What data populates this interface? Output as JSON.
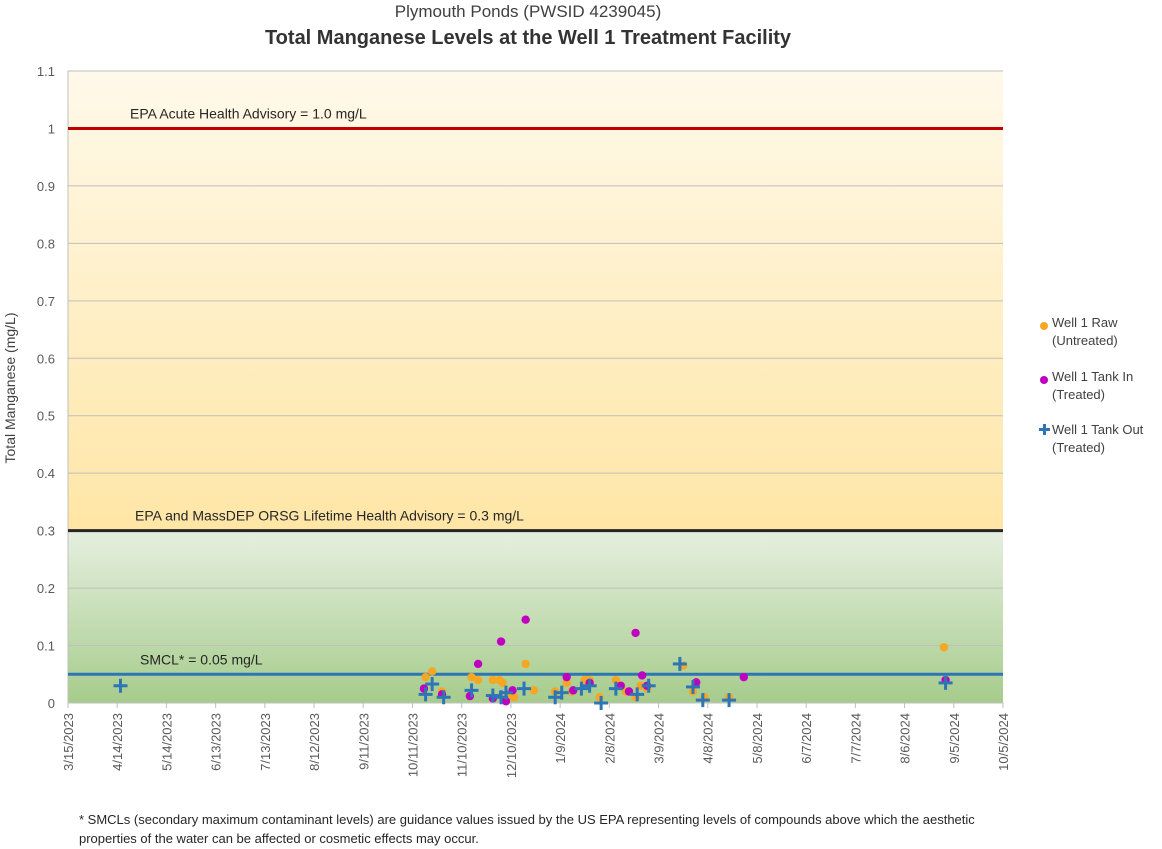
{
  "chart_data": {
    "type": "scatter",
    "subtitle": "Plymouth Ponds (PWSID 4239045)",
    "title": "Total Manganese Levels at the Well 1 Treatment Facility",
    "ylabel": "Total Manganese (mg/L)",
    "xlabel": "",
    "ylim": [
      0,
      1.1
    ],
    "y_ticks": [
      "0",
      "0.1",
      "0.2",
      "0.3",
      "0.4",
      "0.5",
      "0.6",
      "0.7",
      "0.8",
      "0.9",
      "1",
      "1.1"
    ],
    "x_ticks": [
      "3/15/2023",
      "4/14/2023",
      "5/14/2023",
      "6/13/2023",
      "7/13/2023",
      "8/12/2023",
      "9/11/2023",
      "10/11/2023",
      "11/10/2023",
      "12/10/2023",
      "1/9/2024",
      "2/8/2024",
      "3/9/2024",
      "4/8/2024",
      "5/8/2024",
      "6/7/2024",
      "7/7/2024",
      "8/6/2024",
      "9/5/2024",
      "10/5/2024"
    ],
    "xlim": [
      "2023-03-15",
      "2024-10-05"
    ],
    "grid": "horizontal",
    "legend_position": "right",
    "reference_lines": [
      {
        "label": "EPA Acute Health Advisory = 1.0 mg/L",
        "value": 1.0,
        "color": "#c00000"
      },
      {
        "label": "EPA and MassDEP ORSG Lifetime Health Advisory = 0.3 mg/L",
        "value": 0.3,
        "color": "#262626"
      },
      {
        "label": "SMCL* = 0.05 mg/L",
        "value": 0.05,
        "color": "#2e75b6"
      }
    ],
    "series": [
      {
        "name": "Well 1 Raw\n(Untreated)",
        "color": "#f5a623",
        "marker": "circle",
        "points": [
          [
            "2023-10-19",
            0.045
          ],
          [
            "2023-10-23",
            0.055
          ],
          [
            "2023-10-29",
            0.02
          ],
          [
            "2023-11-16",
            0.045
          ],
          [
            "2023-11-20",
            0.04
          ],
          [
            "2023-11-29",
            0.04
          ],
          [
            "2023-12-03",
            0.04
          ],
          [
            "2023-12-05",
            0.035
          ],
          [
            "2023-12-08",
            0.01
          ],
          [
            "2023-12-12",
            0.01
          ],
          [
            "2023-12-19",
            0.068
          ],
          [
            "2023-12-24",
            0.022
          ],
          [
            "2024-01-06",
            0.02
          ],
          [
            "2024-01-13",
            0.035
          ],
          [
            "2024-01-16",
            0.02
          ],
          [
            "2024-01-24",
            0.04
          ],
          [
            "2024-01-27",
            0.04
          ],
          [
            "2024-02-02",
            0.01
          ],
          [
            "2024-02-12",
            0.04
          ],
          [
            "2024-02-18",
            0.02
          ],
          [
            "2024-02-24",
            0.01
          ],
          [
            "2024-02-27",
            0.03
          ],
          [
            "2024-03-02",
            0.025
          ],
          [
            "2024-03-24",
            0.065
          ],
          [
            "2024-03-30",
            0.02
          ],
          [
            "2024-04-06",
            0.01
          ],
          [
            "2024-04-21",
            0.01
          ],
          [
            "2024-08-30",
            0.097
          ]
        ]
      },
      {
        "name": "Well 1 Tank In\n(Treated)",
        "color": "#c000c0",
        "marker": "circle",
        "points": [
          [
            "2023-10-18",
            0.025
          ],
          [
            "2023-10-29",
            0.015
          ],
          [
            "2023-11-15",
            0.012
          ],
          [
            "2023-11-20",
            0.068
          ],
          [
            "2023-11-29",
            0.008
          ],
          [
            "2023-12-04",
            0.107
          ],
          [
            "2023-12-07",
            0.003
          ],
          [
            "2023-12-11",
            0.022
          ],
          [
            "2023-12-19",
            0.145
          ],
          [
            "2024-01-13",
            0.045
          ],
          [
            "2024-01-17",
            0.022
          ],
          [
            "2024-01-27",
            0.035
          ],
          [
            "2024-02-15",
            0.03
          ],
          [
            "2024-02-20",
            0.02
          ],
          [
            "2024-02-24",
            0.122
          ],
          [
            "2024-02-28",
            0.048
          ],
          [
            "2024-03-02",
            0.03
          ],
          [
            "2024-04-01",
            0.036
          ],
          [
            "2024-04-30",
            0.045
          ],
          [
            "2024-08-31",
            0.04
          ]
        ]
      },
      {
        "name": "Well 1 Tank Out\n(Treated)",
        "color": "#2e75b6",
        "marker": "plus",
        "points": [
          [
            "2023-04-16",
            0.03
          ],
          [
            "2023-10-19",
            0.015
          ],
          [
            "2023-10-23",
            0.033
          ],
          [
            "2023-10-30",
            0.01
          ],
          [
            "2023-11-16",
            0.022
          ],
          [
            "2023-11-29",
            0.013
          ],
          [
            "2023-12-04",
            0.01
          ],
          [
            "2023-12-07",
            0.018
          ],
          [
            "2023-12-18",
            0.025
          ],
          [
            "2024-01-06",
            0.01
          ],
          [
            "2024-01-10",
            0.018
          ],
          [
            "2024-01-22",
            0.025
          ],
          [
            "2024-01-27",
            0.03
          ],
          [
            "2024-02-03",
            0.0
          ],
          [
            "2024-02-12",
            0.025
          ],
          [
            "2024-02-25",
            0.015
          ],
          [
            "2024-03-03",
            0.03
          ],
          [
            "2024-03-22",
            0.068
          ],
          [
            "2024-03-30",
            0.028
          ],
          [
            "2024-04-05",
            0.005
          ],
          [
            "2024-04-21",
            0.005
          ],
          [
            "2024-08-31",
            0.035
          ]
        ]
      }
    ]
  },
  "footnote": "* SMCLs (secondary maximum contaminant levels) are guidance values issued by the US EPA representing levels of compounds above which the aesthetic properties of the water can be affected or cosmetic effects may occur."
}
